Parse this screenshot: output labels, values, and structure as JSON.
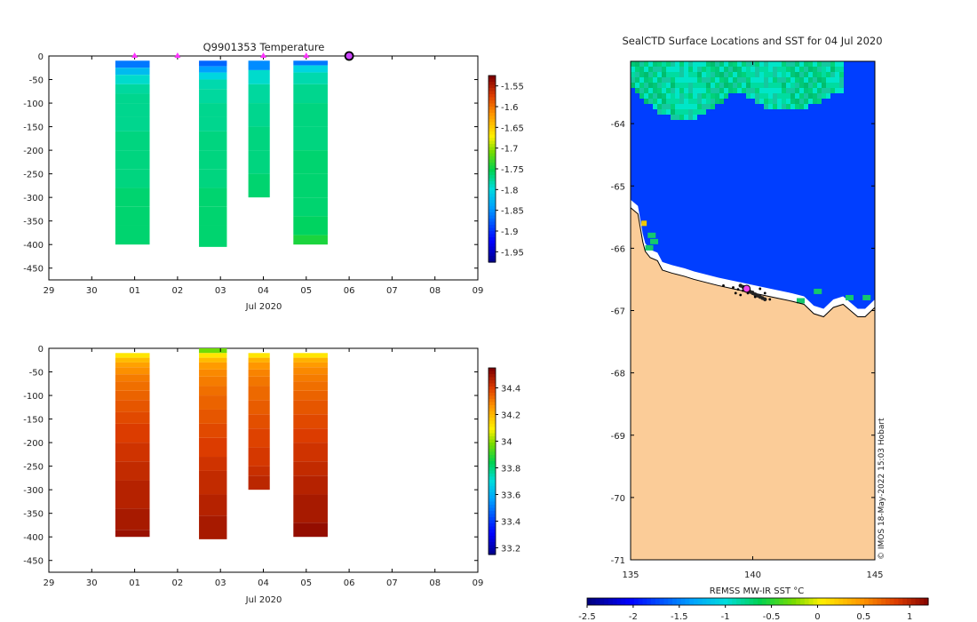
{
  "chart_data": [
    {
      "type": "heatmap",
      "name": "temperature-profile",
      "title": "Q9901353  Temperature",
      "xlabel": "Jul 2020",
      "x_ticks": [
        "29",
        "30",
        "01",
        "02",
        "03",
        "04",
        "05",
        "06",
        "07",
        "08",
        "09"
      ],
      "y_ticks": [
        "0",
        "-50",
        "-100",
        "-150",
        "-200",
        "-250",
        "-300",
        "-350",
        "-400",
        "-450"
      ],
      "ylim": [
        -475,
        0
      ],
      "surface_markers": [
        "01",
        "02",
        "04",
        "05",
        "06"
      ],
      "current_marker": "06",
      "colorbar_ticks": [
        "-1.55",
        "-1.6",
        "-1.65",
        "-1.7",
        "-1.75",
        "-1.8",
        "-1.85",
        "-1.9",
        "-1.95"
      ],
      "clim": [
        -1.975,
        -1.525
      ],
      "profiles": [
        {
          "x_start": 1.55,
          "x_end": 2.35,
          "depths": [
            -10,
            -25,
            -40,
            -60,
            -80,
            -100,
            -130,
            -160,
            -200,
            -240,
            -280,
            -320,
            -360,
            -400
          ],
          "values": [
            -1.86,
            -1.82,
            -1.79,
            -1.775,
            -1.77,
            -1.77,
            -1.77,
            -1.765,
            -1.765,
            -1.765,
            -1.76,
            -1.76,
            -1.76
          ]
        },
        {
          "x_start": 3.5,
          "x_end": 4.15,
          "depths": [
            -10,
            -22,
            -35,
            -50,
            -70,
            -100,
            -130,
            -160,
            -200,
            -240,
            -280,
            -320,
            -360,
            -405
          ],
          "values": [
            -1.87,
            -1.84,
            -1.8,
            -1.78,
            -1.775,
            -1.77,
            -1.77,
            -1.765,
            -1.765,
            -1.765,
            -1.76,
            -1.76,
            -1.76
          ]
        },
        {
          "x_start": 4.65,
          "x_end": 5.15,
          "depths": [
            -10,
            -30,
            -60,
            -100,
            -150,
            -200,
            -250,
            -300
          ],
          "values": [
            -1.85,
            -1.79,
            -1.775,
            -1.77,
            -1.765,
            -1.765,
            -1.76
          ]
        },
        {
          "x_start": 5.7,
          "x_end": 6.5,
          "depths": [
            -10,
            -20,
            -35,
            -60,
            -100,
            -150,
            -200,
            -250,
            -300,
            -340,
            -380,
            -400
          ],
          "values": [
            -1.86,
            -1.8,
            -1.78,
            -1.77,
            -1.765,
            -1.765,
            -1.76,
            -1.76,
            -1.76,
            -1.755,
            -1.74
          ]
        }
      ]
    },
    {
      "type": "heatmap",
      "name": "salinity-profile",
      "xlabel": "Jul 2020",
      "x_ticks": [
        "29",
        "30",
        "01",
        "02",
        "03",
        "04",
        "05",
        "06",
        "07",
        "08",
        "09"
      ],
      "y_ticks": [
        "0",
        "-50",
        "-100",
        "-150",
        "-200",
        "-250",
        "-300",
        "-350",
        "-400",
        "-450"
      ],
      "ylim": [
        -475,
        0
      ],
      "colorbar_ticks": [
        "34.4",
        "34.2",
        "34",
        "33.8",
        "33.6",
        "33.4",
        "33.2"
      ],
      "clim": [
        33.15,
        34.55
      ],
      "profiles": [
        {
          "x_start": 1.55,
          "x_end": 2.35,
          "depths": [
            -10,
            -20,
            -30,
            -40,
            -55,
            -70,
            -90,
            -110,
            -135,
            -160,
            -200,
            -240,
            -280,
            -340,
            -385,
            -400
          ],
          "values": [
            34.12,
            34.2,
            34.25,
            34.28,
            34.31,
            34.33,
            34.35,
            34.37,
            34.39,
            34.41,
            34.43,
            34.45,
            34.47,
            34.49,
            34.51
          ]
        },
        {
          "x_start": 3.5,
          "x_end": 4.15,
          "depths": [
            0,
            -10,
            -20,
            -30,
            -45,
            -60,
            -80,
            -100,
            -130,
            -160,
            -190,
            -230,
            -260,
            -310,
            -355,
            -405
          ],
          "values": [
            33.98,
            34.12,
            34.2,
            34.26,
            34.29,
            34.31,
            34.33,
            34.35,
            34.37,
            34.39,
            34.41,
            34.43,
            34.45,
            34.47,
            34.49
          ]
        },
        {
          "x_start": 4.65,
          "x_end": 5.15,
          "depths": [
            -10,
            -20,
            -30,
            -45,
            -60,
            -80,
            -110,
            -140,
            -170,
            -210,
            -250,
            -270,
            -300
          ],
          "values": [
            34.12,
            34.22,
            34.27,
            34.3,
            34.32,
            34.34,
            34.36,
            34.38,
            34.4,
            34.42,
            34.44,
            34.46
          ]
        },
        {
          "x_start": 5.7,
          "x_end": 6.5,
          "depths": [
            -10,
            -20,
            -30,
            -40,
            -55,
            -70,
            -90,
            -110,
            -140,
            -170,
            -200,
            -240,
            -270,
            -310,
            -370,
            -400
          ],
          "values": [
            34.12,
            34.22,
            34.26,
            34.29,
            34.31,
            34.33,
            34.35,
            34.37,
            34.39,
            34.41,
            34.43,
            34.45,
            34.47,
            34.49,
            34.52
          ]
        }
      ]
    },
    {
      "type": "heatmap",
      "name": "sst-map",
      "title": "SealCTD Surface Locations and SST for 04 Jul 2020",
      "x_ticks": [
        "135",
        "140",
        "145"
      ],
      "y_ticks": [
        "-64",
        "-65",
        "-66",
        "-67",
        "-68",
        "-69",
        "-70",
        "-71"
      ],
      "xlim": [
        135,
        145
      ],
      "ylim": [
        -71,
        -63
      ],
      "colorbar_label": "REMSS MW-IR SST °C",
      "colorbar_ticks": [
        "-2.5",
        "-2",
        "-1.5",
        "-1",
        "-0.5",
        "0",
        "0.5",
        "1"
      ],
      "clim": [
        -2.5,
        1.2
      ],
      "sst_open_water": -1.8,
      "sst_ice_edge": -1.3,
      "coast": [
        [
          135,
          -65.35
        ],
        [
          135.3,
          -65.45
        ],
        [
          135.5,
          -65.9
        ],
        [
          135.6,
          -66.05
        ],
        [
          135.8,
          -66.15
        ],
        [
          136.1,
          -66.2
        ],
        [
          136.3,
          -66.35
        ],
        [
          136.7,
          -66.4
        ],
        [
          137.2,
          -66.45
        ],
        [
          137.6,
          -66.5
        ],
        [
          138.1,
          -66.55
        ],
        [
          138.6,
          -66.6
        ],
        [
          139.2,
          -66.65
        ],
        [
          139.8,
          -66.7
        ],
        [
          140.4,
          -66.75
        ],
        [
          141,
          -66.8
        ],
        [
          141.6,
          -66.85
        ],
        [
          142.1,
          -66.9
        ],
        [
          142.5,
          -67.05
        ],
        [
          142.9,
          -67.1
        ],
        [
          143.3,
          -66.95
        ],
        [
          143.7,
          -66.9
        ],
        [
          144,
          -67
        ],
        [
          144.3,
          -67.1
        ],
        [
          144.6,
          -67.1
        ],
        [
          145,
          -66.95
        ]
      ],
      "ctd_positions": [
        [
          139.2,
          -66.63
        ],
        [
          139.4,
          -66.66
        ],
        [
          139.6,
          -66.68
        ],
        [
          139.8,
          -66.72
        ],
        [
          140,
          -66.7
        ],
        [
          140.2,
          -66.75
        ],
        [
          140.4,
          -66.8
        ],
        [
          139.3,
          -66.72
        ],
        [
          139.7,
          -66.62
        ],
        [
          140.1,
          -66.78
        ],
        [
          140.5,
          -66.72
        ],
        [
          138.8,
          -66.6
        ],
        [
          140.7,
          -66.82
        ],
        [
          139.5,
          -66.75
        ],
        [
          140.3,
          -66.65
        ]
      ],
      "track_positions": [
        [
          139.5,
          -66.6
        ],
        [
          139.6,
          -66.62
        ],
        [
          139.7,
          -66.65
        ],
        [
          139.8,
          -66.68
        ],
        [
          139.9,
          -66.7
        ],
        [
          140,
          -66.72
        ],
        [
          140.1,
          -66.74
        ],
        [
          140.2,
          -66.76
        ],
        [
          140.3,
          -66.78
        ],
        [
          140.4,
          -66.8
        ],
        [
          140.5,
          -66.82
        ]
      ],
      "current_position": [
        139.75,
        -66.65
      ],
      "extra_sst_marker": [
        135.55,
        -65.6
      ],
      "watermark": "© IMOS 18-May-2022 15:03 Hobart"
    }
  ]
}
